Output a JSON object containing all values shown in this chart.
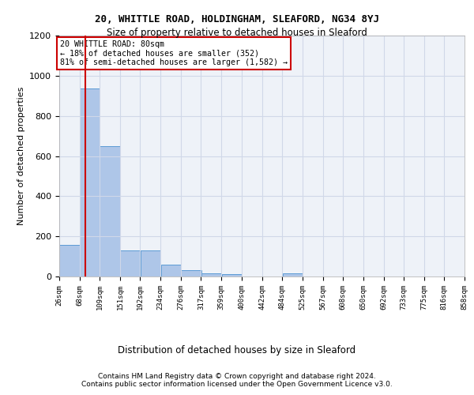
{
  "title1": "20, WHITTLE ROAD, HOLDINGHAM, SLEAFORD, NG34 8YJ",
  "title2": "Size of property relative to detached houses in Sleaford",
  "xlabel": "Distribution of detached houses by size in Sleaford",
  "ylabel": "Number of detached properties",
  "footer1": "Contains HM Land Registry data © Crown copyright and database right 2024.",
  "footer2": "Contains public sector information licensed under the Open Government Licence v3.0.",
  "annotation_line1": "20 WHITTLE ROAD: 80sqm",
  "annotation_line2": "← 18% of detached houses are smaller (352)",
  "annotation_line3": "81% of semi-detached houses are larger (1,582) →",
  "property_size": 80,
  "bar_color": "#AEC6E8",
  "bar_edge_color": "#5B9BD5",
  "red_line_color": "#CC0000",
  "annotation_box_color": "#CC0000",
  "grid_color": "#D0D8E8",
  "bg_color": "#EEF2F8",
  "bins": [
    26,
    68,
    109,
    151,
    192,
    234,
    276,
    317,
    359,
    400,
    442,
    484,
    525,
    567,
    608,
    650,
    692,
    733,
    775,
    816,
    858
  ],
  "counts": [
    157,
    935,
    648,
    128,
    128,
    58,
    30,
    15,
    10,
    0,
    0,
    14,
    0,
    0,
    0,
    0,
    0,
    0,
    0,
    0
  ],
  "ylim": [
    0,
    1200
  ],
  "yticks": [
    0,
    200,
    400,
    600,
    800,
    1000,
    1200
  ]
}
